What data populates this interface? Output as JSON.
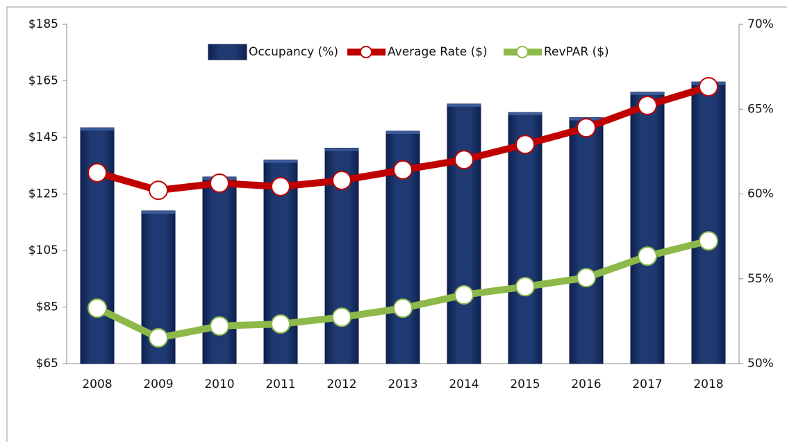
{
  "chart_data": {
    "type": "bar",
    "categories": [
      "2008",
      "2009",
      "2010",
      "2011",
      "2012",
      "2013",
      "2014",
      "2015",
      "2016",
      "2017",
      "2018"
    ],
    "series": [
      {
        "name": "Occupancy (%)",
        "type": "bar",
        "axis": "y2",
        "color": "#1b3468",
        "values": [
          63.9,
          59.0,
          61.0,
          62.0,
          62.7,
          63.7,
          65.3,
          64.8,
          64.5,
          66.0,
          66.6
        ]
      },
      {
        "name": "Average Rate ($)",
        "type": "line",
        "axis": "y",
        "color": "#c00000",
        "values": [
          132.5,
          126.3,
          128.8,
          127.6,
          129.8,
          133.5,
          137.1,
          142.5,
          148.4,
          156.3,
          162.9
        ]
      },
      {
        "name": "RevPAR ($)",
        "type": "line",
        "axis": "y",
        "color": "#8db94a",
        "values": [
          84.6,
          74.1,
          78.3,
          79.0,
          81.4,
          84.6,
          89.3,
          92.2,
          95.4,
          103.0,
          108.4
        ]
      }
    ],
    "ylim": [
      65,
      185
    ],
    "yticks": [
      {
        "value": 65,
        "label": "$65"
      },
      {
        "value": 85,
        "label": "$85"
      },
      {
        "value": 105,
        "label": "$105"
      },
      {
        "value": 125,
        "label": "$125"
      },
      {
        "value": 145,
        "label": "$145"
      },
      {
        "value": 165,
        "label": "$165"
      },
      {
        "value": 185,
        "label": "$185"
      }
    ],
    "y2lim": [
      50,
      70
    ],
    "y2ticks": [
      {
        "value": 50,
        "label": "50%"
      },
      {
        "value": 55,
        "label": "55%"
      },
      {
        "value": 60,
        "label": "60%"
      },
      {
        "value": 65,
        "label": "65%"
      },
      {
        "value": 70,
        "label": "70%"
      }
    ],
    "grid": false,
    "legend": "top"
  }
}
